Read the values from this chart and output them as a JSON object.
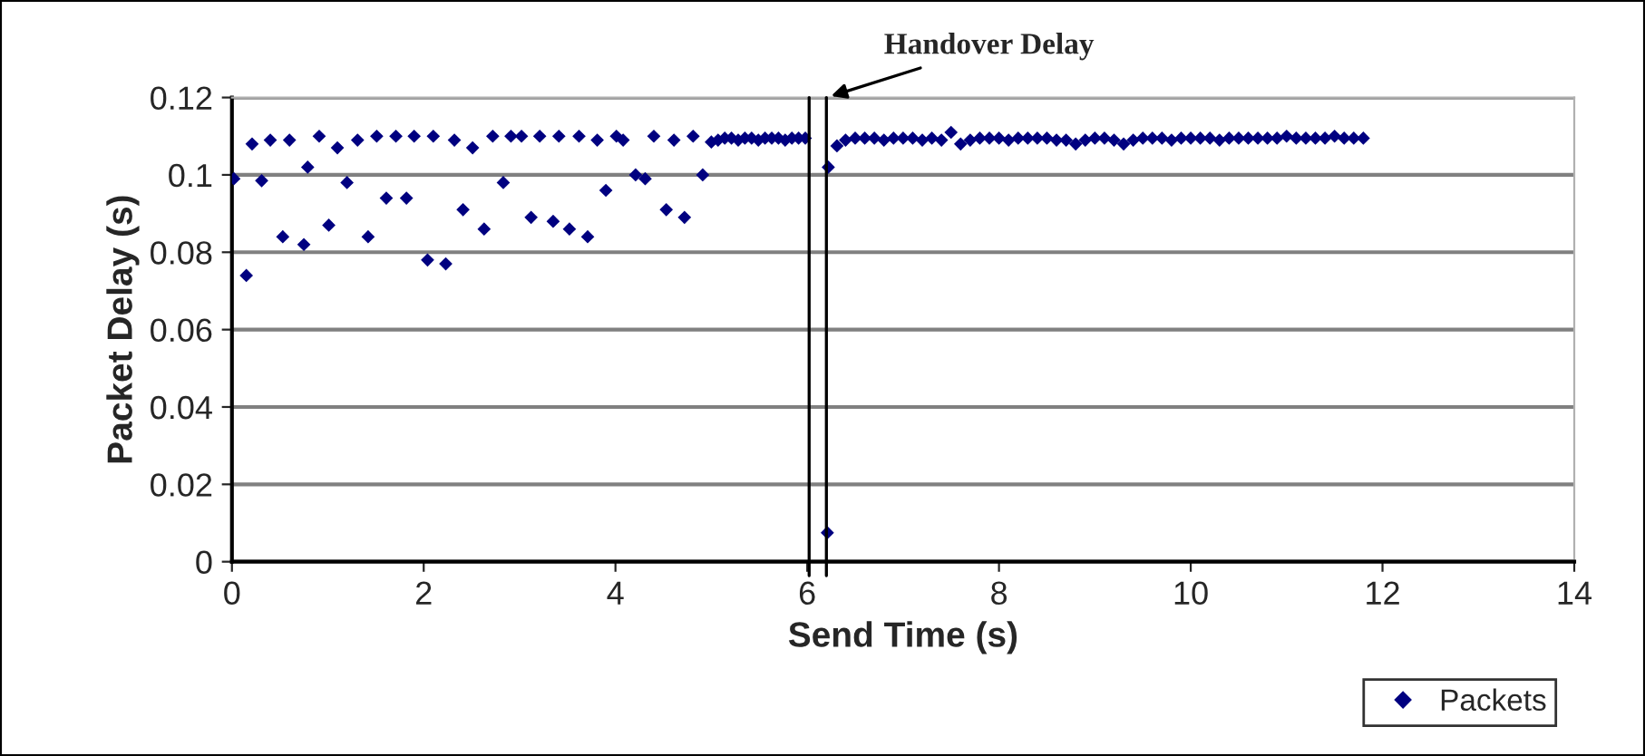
{
  "chart_data": {
    "type": "scatter",
    "xlabel": "Send Time (s)",
    "ylabel": "Packet Delay (s)",
    "series": [
      {
        "name": "Packets",
        "color": "#000080",
        "x": [
          0.02,
          0.15,
          0.21,
          0.31,
          0.4,
          0.53,
          0.6,
          0.75,
          0.79,
          0.91,
          1.01,
          1.1,
          1.2,
          1.31,
          1.42,
          1.51,
          1.61,
          1.71,
          1.82,
          1.9,
          2.04,
          2.1,
          2.23,
          2.32,
          2.41,
          2.51,
          2.63,
          2.72,
          2.83,
          2.91,
          3.02,
          3.12,
          3.21,
          3.35,
          3.41,
          3.52,
          3.62,
          3.71,
          3.81,
          3.9,
          4.01,
          4.08,
          4.21,
          4.31,
          4.4,
          4.53,
          4.61,
          4.72,
          4.81,
          4.91,
          5.0,
          5.07,
          5.14,
          5.21,
          5.28,
          5.35,
          5.42,
          5.49,
          5.56,
          5.63,
          5.7,
          5.77,
          5.84,
          5.91,
          5.98,
          6.21,
          6.22,
          6.31,
          6.4,
          6.5,
          6.6,
          6.7,
          6.8,
          6.9,
          7.0,
          7.1,
          7.2,
          7.3,
          7.4,
          7.5,
          7.6,
          7.7,
          7.8,
          7.9,
          8.0,
          8.1,
          8.2,
          8.3,
          8.4,
          8.5,
          8.6,
          8.7,
          8.8,
          8.9,
          9.0,
          9.1,
          9.2,
          9.3,
          9.4,
          9.5,
          9.6,
          9.7,
          9.8,
          9.9,
          10.0,
          10.1,
          10.2,
          10.3,
          10.4,
          10.5,
          10.6,
          10.7,
          10.8,
          10.9,
          11.0,
          11.1,
          11.2,
          11.3,
          11.4,
          11.5,
          11.6,
          11.7,
          11.8
        ],
        "values": [
          0.099,
          0.074,
          0.108,
          0.0985,
          0.109,
          0.084,
          0.109,
          0.082,
          0.102,
          0.11,
          0.087,
          0.107,
          0.098,
          0.109,
          0.084,
          0.11,
          0.094,
          0.11,
          0.094,
          0.11,
          0.078,
          0.11,
          0.077,
          0.109,
          0.091,
          0.107,
          0.086,
          0.11,
          0.098,
          0.11,
          0.11,
          0.089,
          0.11,
          0.088,
          0.11,
          0.086,
          0.11,
          0.084,
          0.109,
          0.096,
          0.11,
          0.109,
          0.1,
          0.099,
          0.11,
          0.091,
          0.109,
          0.089,
          0.11,
          0.1,
          0.1085,
          0.109,
          0.1095,
          0.1095,
          0.109,
          0.1095,
          0.1095,
          0.109,
          0.1095,
          0.1095,
          0.1095,
          0.109,
          0.1095,
          0.1095,
          0.1095,
          0.0075,
          0.102,
          0.1075,
          0.109,
          0.1095,
          0.1095,
          0.1095,
          0.109,
          0.1095,
          0.1095,
          0.1095,
          0.109,
          0.1095,
          0.109,
          0.111,
          0.108,
          0.109,
          0.1095,
          0.1095,
          0.1095,
          0.109,
          0.1095,
          0.1095,
          0.1095,
          0.1095,
          0.109,
          0.109,
          0.108,
          0.109,
          0.1095,
          0.1095,
          0.109,
          0.108,
          0.109,
          0.1095,
          0.1095,
          0.1095,
          0.109,
          0.1095,
          0.1095,
          0.1095,
          0.1095,
          0.109,
          0.1095,
          0.1095,
          0.1095,
          0.1095,
          0.1095,
          0.1095,
          0.11,
          0.1095,
          0.1095,
          0.1095,
          0.1095,
          0.11,
          0.1095,
          0.1095,
          0.1095
        ]
      }
    ],
    "xlim": [
      0,
      14
    ],
    "xticks": [
      0,
      2,
      4,
      6,
      8,
      10,
      12,
      14
    ],
    "ylim": [
      0,
      0.12
    ],
    "yticks": [
      0,
      0.02,
      0.04,
      0.06,
      0.08,
      0.1,
      0.12
    ],
    "grid": "y",
    "marker": "diamond",
    "legend": "bottom right",
    "ref_lines": [
      {
        "axis": "x",
        "value": 6.02,
        "color": "#000000"
      },
      {
        "axis": "x",
        "value": 6.2,
        "color": "#000000"
      }
    ],
    "annotations": [
      {
        "text": "Handover Delay",
        "x": 6.2,
        "y": 0.12
      }
    ]
  }
}
